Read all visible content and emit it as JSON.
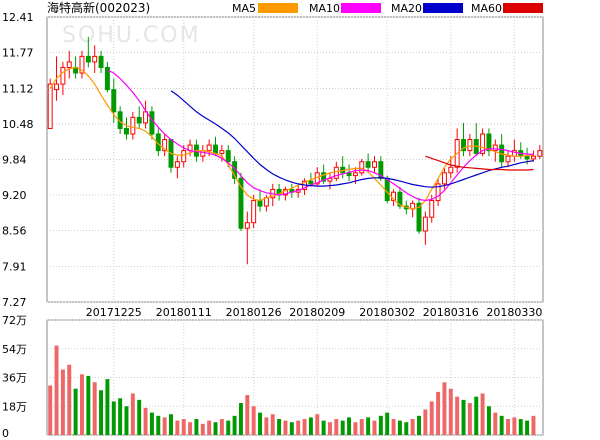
{
  "header": {
    "title": "海特高新(002023)",
    "watermark": "SOHU.COM"
  },
  "legend": [
    {
      "name": "MA5",
      "color": "#ff9900"
    },
    {
      "name": "MA10",
      "color": "#ff00ff"
    },
    {
      "name": "MA20",
      "color": "#0000cc"
    },
    {
      "name": "MA60",
      "color": "#dd0000"
    }
  ],
  "colors": {
    "up": "#ff0000",
    "down": "#009900",
    "grid": "#d0d0d0",
    "frame": "#888888",
    "vol_up": "#ee6666",
    "vol_down": "#009900"
  },
  "chart_data": [
    {
      "type": "candlestick",
      "y_ticks": [
        "12.41",
        "11.77",
        "11.12",
        "10.48",
        "9.84",
        "9.20",
        "8.56",
        "7.91",
        "7.27"
      ],
      "ylim": [
        7.27,
        12.41
      ],
      "x_ticks": [
        {
          "label": "20171225",
          "index": 10
        },
        {
          "label": "20180111",
          "index": 21
        },
        {
          "label": "20180126",
          "index": 32
        },
        {
          "label": "20180209",
          "index": 42
        },
        {
          "label": "20180302",
          "index": 53
        },
        {
          "label": "20180316",
          "index": 63
        },
        {
          "label": "20180330",
          "index": 73
        }
      ],
      "ohlc": [
        [
          10.4,
          11.3,
          10.4,
          11.2
        ],
        [
          11.1,
          11.7,
          10.9,
          11.2
        ],
        [
          11.2,
          11.6,
          11.0,
          11.5
        ],
        [
          11.5,
          11.8,
          11.3,
          11.6
        ],
        [
          11.5,
          11.7,
          11.3,
          11.4
        ],
        [
          11.4,
          11.8,
          11.3,
          11.7
        ],
        [
          11.7,
          12.05,
          11.5,
          11.6
        ],
        [
          11.6,
          11.9,
          11.4,
          11.7
        ],
        [
          11.7,
          11.8,
          11.4,
          11.5
        ],
        [
          11.5,
          11.6,
          11.05,
          11.1
        ],
        [
          11.1,
          11.3,
          10.5,
          10.7
        ],
        [
          10.7,
          10.8,
          10.3,
          10.4
        ],
        [
          10.4,
          10.6,
          10.2,
          10.3
        ],
        [
          10.3,
          10.7,
          10.2,
          10.6
        ],
        [
          10.6,
          10.8,
          10.4,
          10.5
        ],
        [
          10.5,
          10.9,
          10.4,
          10.7
        ],
        [
          10.7,
          10.8,
          10.2,
          10.3
        ],
        [
          10.3,
          10.4,
          9.9,
          10.0
        ],
        [
          10.0,
          10.3,
          9.9,
          10.2
        ],
        [
          10.2,
          10.2,
          9.6,
          9.7
        ],
        [
          9.7,
          9.9,
          9.5,
          9.8
        ],
        [
          9.8,
          10.1,
          9.7,
          10.0
        ],
        [
          10.0,
          10.2,
          9.9,
          10.1
        ],
        [
          10.1,
          10.2,
          9.8,
          9.9
        ],
        [
          9.9,
          10.1,
          9.8,
          10.0
        ],
        [
          10.0,
          10.2,
          9.9,
          10.1
        ],
        [
          10.1,
          10.25,
          9.9,
          9.95
        ],
        [
          9.95,
          10.1,
          9.8,
          10.0
        ],
        [
          10.0,
          10.1,
          9.7,
          9.8
        ],
        [
          9.8,
          9.9,
          9.4,
          9.5
        ],
        [
          9.5,
          9.6,
          8.55,
          8.6
        ],
        [
          8.6,
          8.9,
          7.95,
          8.7
        ],
        [
          8.7,
          9.2,
          8.6,
          9.1
        ],
        [
          9.1,
          9.3,
          8.9,
          9.0
        ],
        [
          9.0,
          9.2,
          8.9,
          9.15
        ],
        [
          9.15,
          9.4,
          9.0,
          9.3
        ],
        [
          9.3,
          9.4,
          9.1,
          9.2
        ],
        [
          9.2,
          9.35,
          9.1,
          9.3
        ],
        [
          9.3,
          9.4,
          9.15,
          9.25
        ],
        [
          9.25,
          9.4,
          9.15,
          9.3
        ],
        [
          9.3,
          9.5,
          9.2,
          9.45
        ],
        [
          9.45,
          9.6,
          9.35,
          9.4
        ],
        [
          9.4,
          9.7,
          9.35,
          9.6
        ],
        [
          9.6,
          9.75,
          9.4,
          9.45
        ],
        [
          9.45,
          9.6,
          9.3,
          9.5
        ],
        [
          9.5,
          9.8,
          9.45,
          9.7
        ],
        [
          9.7,
          9.9,
          9.5,
          9.6
        ],
        [
          9.6,
          9.75,
          9.45,
          9.55
        ],
        [
          9.55,
          9.7,
          9.4,
          9.6
        ],
        [
          9.6,
          9.85,
          9.55,
          9.8
        ],
        [
          9.8,
          9.95,
          9.6,
          9.7
        ],
        [
          9.7,
          9.9,
          9.6,
          9.8
        ],
        [
          9.8,
          9.9,
          9.45,
          9.5
        ],
        [
          9.5,
          9.55,
          9.05,
          9.1
        ],
        [
          9.1,
          9.3,
          9.0,
          9.25
        ],
        [
          9.25,
          9.35,
          8.95,
          9.0
        ],
        [
          9.0,
          9.1,
          8.85,
          8.95
        ],
        [
          8.95,
          9.1,
          8.8,
          9.05
        ],
        [
          9.05,
          9.15,
          8.5,
          8.55
        ],
        [
          8.55,
          8.9,
          8.3,
          8.8
        ],
        [
          8.8,
          9.2,
          8.7,
          9.1
        ],
        [
          9.1,
          9.5,
          9.0,
          9.4
        ],
        [
          9.4,
          9.7,
          9.3,
          9.6
        ],
        [
          9.6,
          9.9,
          9.5,
          9.7
        ],
        [
          9.7,
          10.4,
          9.6,
          10.2
        ],
        [
          10.2,
          10.5,
          9.9,
          10.0
        ],
        [
          10.0,
          10.3,
          9.9,
          10.2
        ],
        [
          10.2,
          10.5,
          9.9,
          9.95
        ],
        [
          9.95,
          10.4,
          9.9,
          10.3
        ],
        [
          10.3,
          10.4,
          9.9,
          10.0
        ],
        [
          10.0,
          10.2,
          9.8,
          10.1
        ],
        [
          10.1,
          10.3,
          9.7,
          9.8
        ],
        [
          9.8,
          10.0,
          9.7,
          9.9
        ],
        [
          9.9,
          10.2,
          9.8,
          10.0
        ],
        [
          10.0,
          10.15,
          9.85,
          9.9
        ],
        [
          9.9,
          10.05,
          9.75,
          9.85
        ],
        [
          9.85,
          10.0,
          9.8,
          9.9
        ],
        [
          9.9,
          10.1,
          9.85,
          10.0
        ]
      ],
      "ma": {
        "MA5": [
          11.12,
          11.3,
          11.41,
          11.48,
          11.5,
          11.45,
          11.35,
          11.2,
          11.0,
          10.82,
          10.65,
          10.52,
          10.45,
          10.42,
          10.4,
          10.35,
          10.25,
          10.12,
          10.03,
          9.95,
          9.92,
          9.92,
          9.96,
          10.0,
          10.0,
          9.98,
          9.95,
          9.9,
          9.75,
          9.55,
          9.35,
          9.2,
          9.12,
          9.1,
          9.15,
          9.18,
          9.22,
          9.28,
          9.32,
          9.38,
          9.42,
          9.48,
          9.52,
          9.56,
          9.6,
          9.62,
          9.64,
          9.66,
          9.68,
          9.68,
          9.62,
          9.5,
          9.38,
          9.25,
          9.12,
          9.02,
          8.98,
          8.95,
          8.98,
          9.1,
          9.3,
          9.5,
          9.7,
          9.85,
          9.95,
          10.05,
          10.08,
          10.08,
          10.06,
          10.02,
          9.98,
          9.94,
          9.92,
          9.9,
          9.9,
          9.91,
          9.92
        ],
        "MA10": [
          null,
          null,
          null,
          null,
          null,
          null,
          null,
          null,
          null,
          11.45,
          11.4,
          11.3,
          11.18,
          11.05,
          10.9,
          10.72,
          10.56,
          10.42,
          10.3,
          10.2,
          10.12,
          10.05,
          10.0,
          9.98,
          9.97,
          9.95,
          9.92,
          9.86,
          9.78,
          9.68,
          9.55,
          9.42,
          9.33,
          9.28,
          9.24,
          9.22,
          9.2,
          9.22,
          9.25,
          9.28,
          9.33,
          9.38,
          9.42,
          9.47,
          9.51,
          9.55,
          9.58,
          9.61,
          9.64,
          9.65,
          9.64,
          9.6,
          9.55,
          9.48,
          9.4,
          9.32,
          9.24,
          9.17,
          9.12,
          9.1,
          9.12,
          9.18,
          9.28,
          9.42,
          9.56,
          9.7,
          9.82,
          9.92,
          10.0,
          10.03,
          10.03,
          10.02,
          10.0,
          9.97,
          9.95,
          9.94,
          9.93
        ],
        "MA20": [
          null,
          null,
          null,
          null,
          null,
          null,
          null,
          null,
          null,
          null,
          null,
          null,
          null,
          null,
          null,
          null,
          null,
          null,
          null,
          11.08,
          11.0,
          10.9,
          10.8,
          10.7,
          10.62,
          10.55,
          10.48,
          10.4,
          10.32,
          10.22,
          10.1,
          9.98,
          9.86,
          9.75,
          9.66,
          9.58,
          9.52,
          9.47,
          9.43,
          9.4,
          9.38,
          9.37,
          9.36,
          9.36,
          9.37,
          9.38,
          9.4,
          9.42,
          9.45,
          9.48,
          9.5,
          9.51,
          9.51,
          9.5,
          9.48,
          9.45,
          9.42,
          9.39,
          9.37,
          9.35,
          9.34,
          9.35,
          9.37,
          9.4,
          9.44,
          9.48,
          9.52,
          9.56,
          9.6,
          9.64,
          9.67,
          9.7,
          9.72,
          9.75,
          9.78,
          9.8,
          9.82
        ],
        "MA60": [
          null,
          null,
          null,
          null,
          null,
          null,
          null,
          null,
          null,
          null,
          null,
          null,
          null,
          null,
          null,
          null,
          null,
          null,
          null,
          null,
          null,
          null,
          null,
          null,
          null,
          null,
          null,
          null,
          null,
          null,
          null,
          null,
          null,
          null,
          null,
          null,
          null,
          null,
          null,
          null,
          null,
          null,
          null,
          null,
          null,
          null,
          null,
          null,
          null,
          null,
          null,
          null,
          null,
          null,
          null,
          null,
          null,
          null,
          null,
          9.9,
          9.86,
          9.82,
          9.78,
          9.74,
          9.72,
          9.7,
          9.69,
          9.68,
          9.67,
          9.66,
          9.66,
          9.66,
          9.65,
          9.65,
          9.65,
          9.65,
          9.66
        ]
      }
    },
    {
      "type": "bar",
      "name": "volume",
      "y_ticks": [
        "72万",
        "54万",
        "36万",
        "18万",
        "0"
      ],
      "ylim": [
        0,
        72
      ],
      "values": [
        31,
        56,
        41,
        44,
        29,
        38,
        37,
        33,
        28,
        35,
        21,
        23,
        18,
        26,
        22,
        17,
        14,
        12,
        11,
        13,
        9,
        10,
        8,
        10,
        7,
        9,
        8,
        10,
        9,
        12,
        20,
        25,
        18,
        14,
        11,
        13,
        10,
        9,
        8,
        9,
        10,
        11,
        13,
        9,
        8,
        10,
        9,
        11,
        8,
        10,
        11,
        9,
        12,
        14,
        10,
        9,
        8,
        10,
        12,
        16,
        21,
        27,
        33,
        29,
        24,
        22,
        20,
        24,
        26,
        18,
        14,
        12,
        10,
        11,
        10,
        9,
        12
      ]
    }
  ]
}
